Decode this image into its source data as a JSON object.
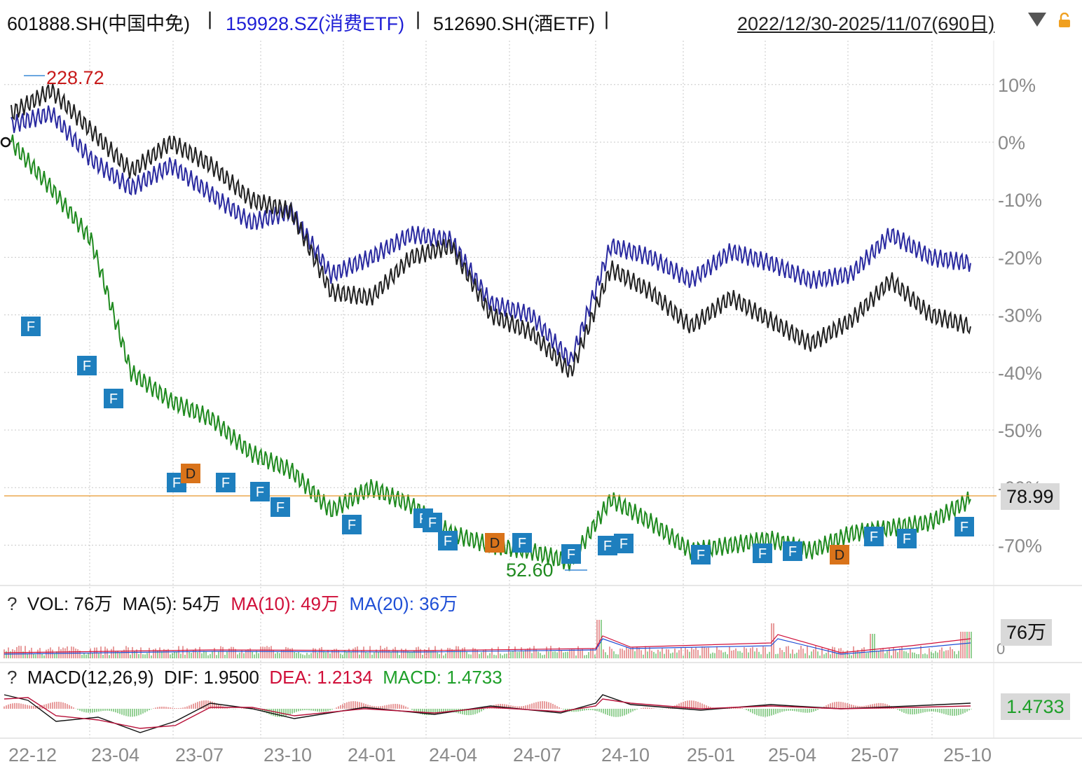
{
  "header": {
    "sym1": "601888.SH(中国中免)",
    "sep1": " | ",
    "sym2": "159928.SZ(消费ETF)",
    "sep2": " | ",
    "sym3": "512690.SH(酒ETF)",
    "sep3": " |",
    "range": "2022/12/30-2025/11/07(690日)",
    "colors": {
      "sym1": "#111111",
      "sym2": "#1f1fd6",
      "sym3": "#111111"
    },
    "icons": [
      "dropdown-triangle-icon",
      "lock-icon"
    ]
  },
  "main": {
    "pct_ticks": [
      "10%",
      "0%",
      "-10%",
      "-20%",
      "-30%",
      "-40%",
      "-50%",
      "-60%",
      "-70%"
    ],
    "high_label": "228.72",
    "low_label": "52.60",
    "last_price": "78.99",
    "marker_labels": {
      "F": "F",
      "D": "D"
    }
  },
  "volume": {
    "q": "?",
    "vol": "VOL: 76万",
    "ma5": "MA(5): 54万",
    "ma10": "MA(10): 49万",
    "ma20": "MA(20): 36万",
    "axis_zero": "0",
    "last": "76万"
  },
  "macd": {
    "q": "?",
    "name": "MACD(12,26,9)",
    "dif": "DIF: 1.9500",
    "dea": "DEA: 1.2134",
    "macd": "MACD: 1.4733",
    "last": "1.4733"
  },
  "x_labels": [
    "22-12",
    "23-04",
    "23-07",
    "23-10",
    "24-01",
    "24-04",
    "24-07",
    "24-10",
    "25-01",
    "25-04",
    "25-07",
    "25-10"
  ],
  "chart_data": {
    "type": "line",
    "title": "601888.SH(中国中免) | 159928.SZ(消费ETF) | 512690.SH(酒ETF)",
    "xlabel": "",
    "ylabel": "",
    "ylim": [
      -75,
      14
    ],
    "grid": true,
    "x": [
      "22-12",
      "23-02",
      "23-04",
      "23-05",
      "23-07",
      "23-08",
      "23-10",
      "23-11",
      "24-01",
      "24-02",
      "24-04",
      "24-05",
      "24-07",
      "24-08",
      "24-09",
      "24-10",
      "24-11",
      "25-01",
      "25-02",
      "25-04",
      "25-05",
      "25-07",
      "25-08",
      "25-10",
      "25-11"
    ],
    "series": [
      {
        "name": "601888.SH(中国中免)",
        "color": "#1f8a1f",
        "values": [
          0,
          -8,
          -17,
          -40,
          -45,
          -48,
          -54,
          -57,
          -64,
          -60,
          -63,
          -68,
          -70,
          -71,
          -73,
          -62,
          -66,
          -71,
          -70,
          -69,
          -71,
          -68,
          -67,
          -66,
          -62
        ]
      },
      {
        "name": "159928.SZ(消费ETF)",
        "color": "#2a2aa0",
        "values": [
          3,
          5,
          -3,
          -8,
          -4,
          -9,
          -14,
          -12,
          -23,
          -20,
          -16,
          -17,
          -28,
          -30,
          -38,
          -18,
          -20,
          -24,
          -19,
          -21,
          -24,
          -23,
          -16,
          -20,
          -21
        ]
      },
      {
        "name": "512690.SH(酒ETF)",
        "color": "#222222",
        "values": [
          5,
          9,
          2,
          -5,
          0,
          -4,
          -10,
          -12,
          -26,
          -27,
          -20,
          -18,
          -30,
          -33,
          -40,
          -22,
          -26,
          -32,
          -27,
          -31,
          -35,
          -31,
          -24,
          -30,
          -32
        ]
      }
    ],
    "annotations": {
      "high": 228.72,
      "low": 52.6,
      "last": 78.99
    },
    "volume": {
      "last_wan": 76,
      "ma5_wan": 54,
      "ma10_wan": 49,
      "ma20_wan": 36
    },
    "macd": {
      "params": [
        12,
        26,
        9
      ],
      "dif": 1.95,
      "dea": 1.2134,
      "macd": 1.4733
    }
  }
}
